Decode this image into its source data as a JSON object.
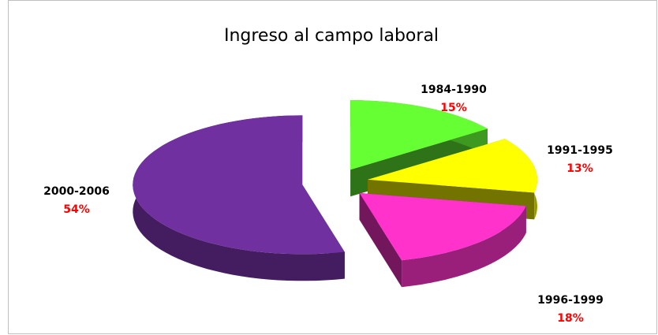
{
  "chart_data": {
    "type": "pie",
    "title": "Ingreso al campo laboral",
    "categories": [
      "1984-1990",
      "1991-1995",
      "1996-1999",
      "2000-2006"
    ],
    "values": [
      15,
      13,
      18,
      54
    ],
    "value_labels": [
      "15%",
      "13%",
      "18%",
      "54%"
    ],
    "colors": [
      "#66ff33",
      "#ffff00",
      "#ff33cc",
      "#7030a0"
    ]
  }
}
